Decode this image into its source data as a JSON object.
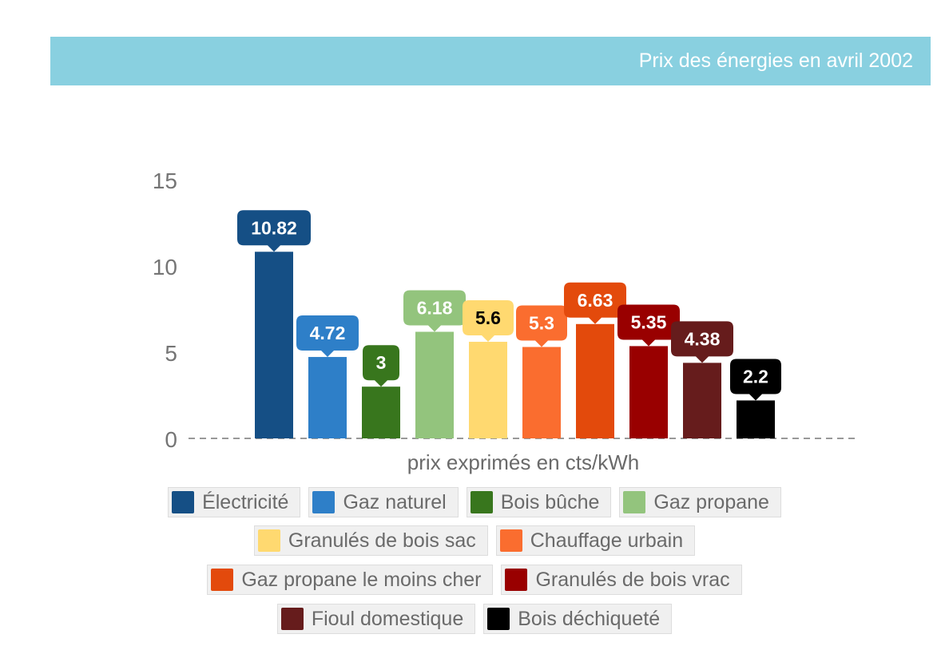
{
  "header": {
    "title": "Prix des énergies en avril 2002"
  },
  "chart_data": {
    "type": "bar",
    "title": "Prix des énergies en avril 2002",
    "xlabel": "prix exprimés en cts/kWh",
    "ylabel": "",
    "ylim": [
      0,
      15
    ],
    "yticks": [
      "0",
      "5",
      "10",
      "15"
    ],
    "grid": false,
    "legend_placement": "bottom",
    "categories": [
      "Électricité",
      "Gaz naturel",
      "Bois bûche",
      "Gaz propane",
      "Granulés de bois sac",
      "Chauffage urbain",
      "Gaz propane le moins cher",
      "Granulés de bois vrac",
      "Fioul domestique",
      "Bois déchiqueté"
    ],
    "values": [
      10.82,
      4.72,
      3,
      6.18,
      5.6,
      5.3,
      6.63,
      5.35,
      4.38,
      2.2
    ],
    "labels": [
      "10.82",
      "4.72",
      "3",
      "6.18",
      "5.6",
      "5.3",
      "6.63",
      "5.35",
      "4.38",
      "2.2"
    ],
    "colors": [
      "#154f85",
      "#2e7fc8",
      "#38761d",
      "#93c47d",
      "#ffd970",
      "#fa6d2f",
      "#e34a0c",
      "#990000",
      "#661c1c",
      "#000000"
    ],
    "label_text_colors": [
      "#ffffff",
      "#ffffff",
      "#ffffff",
      "#ffffff",
      "#000000",
      "#ffffff",
      "#ffffff",
      "#ffffff",
      "#ffffff",
      "#ffffff"
    ]
  }
}
